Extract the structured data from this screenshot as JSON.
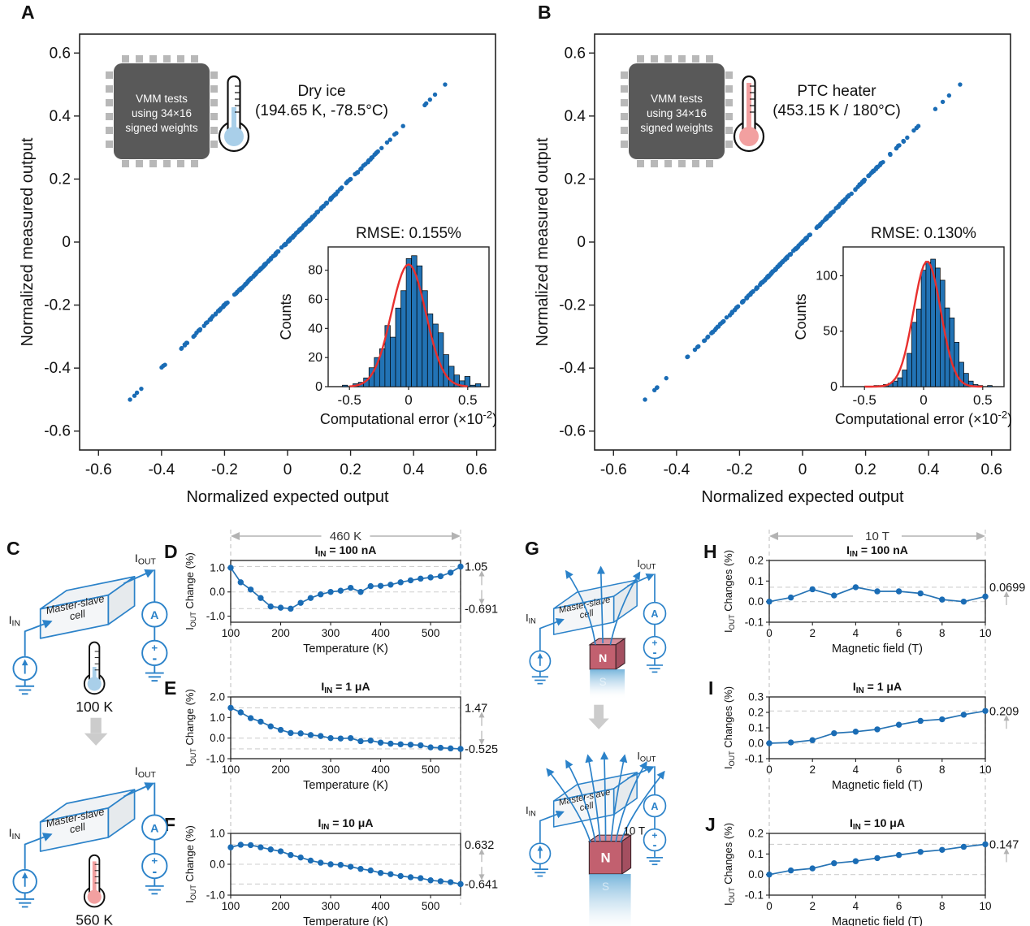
{
  "letters": {
    "a": "A",
    "b": "B",
    "c": "C",
    "d": "D",
    "e": "E",
    "f": "F",
    "g": "G",
    "h": "H",
    "i": "I",
    "j": "J"
  },
  "colors": {
    "point_blue": "#1a6cb5",
    "line_blue": "#2673b4",
    "hist_bar": "#2273b5",
    "gauss_red": "#e8302e",
    "circuit": "#2b82c9",
    "chip_body": "#595959",
    "chip_pin": "#b8b8b8",
    "thermo_cold": "#a9cfe9",
    "thermo_hot": "#f2a0a0",
    "magnet_front": "#c2606f",
    "magnet_top": "#d78f9c",
    "magnet_side": "#a44f60",
    "dash_gray": "#c9c9c9",
    "annot_gray": "#b3b3b3",
    "axis": "#1a1a1a"
  },
  "headers": {
    "def": {
      "label": "460 K"
    },
    "hij": {
      "label": "10 T"
    }
  },
  "chart_data": [
    {
      "id": "A",
      "type": "scatter",
      "xlabel": "Normalized expected output",
      "ylabel": "Normalized measured output",
      "xlim": [
        -0.66,
        0.66
      ],
      "ylim": [
        -0.66,
        0.66
      ],
      "ticks": {
        "vals": [
          -0.6,
          -0.4,
          -0.2,
          0,
          0.2,
          0.4,
          0.6
        ],
        "labels": [
          "-0.6",
          "-0.4",
          "-0.2",
          "0",
          "0.2",
          "0.4",
          "0.6"
        ]
      },
      "relation": "measured output = expected output (points lie on identity line y=x, -0.5 to 0.5)",
      "scatter_spec": {
        "n": 235,
        "seed": 987654321,
        "spread": 0.62,
        "clip": 0.5,
        "noise": 0.004,
        "extremes": [
          [
            -0.5,
            -0.5
          ],
          [
            -0.478,
            -0.478
          ],
          [
            0.5,
            0.5
          ],
          [
            0.468,
            0.468
          ],
          [
            0.452,
            0.452
          ],
          [
            0.44,
            0.44
          ]
        ]
      },
      "chip_label": [
        "VMM tests",
        "using 34×16",
        "signed weights"
      ],
      "thermometer": "cold",
      "condition": [
        "Dry ice",
        "(194.65 K, -78.5°C)"
      ],
      "inset": {
        "type": "histogram",
        "title": "RMSE: 0.155%",
        "ylabel": "Counts",
        "xlabel_parts": {
          "pre": "Computational error (×10",
          "sup": "-2",
          "post": ")"
        },
        "xlim": [
          -0.68,
          0.68
        ],
        "xticks": {
          "vals": [
            -0.5,
            0,
            0.5
          ],
          "labels": [
            "-0.5",
            "0",
            "0.5"
          ]
        },
        "yticks": [
          0,
          20,
          40,
          60,
          80
        ],
        "ymax": 96,
        "bin_start": -0.56,
        "bin_width": 0.045,
        "counts": [
          1,
          0,
          2,
          3,
          6,
          13,
          20,
          26,
          42,
          34,
          54,
          66,
          88,
          90,
          83,
          66,
          50,
          43,
          37,
          22,
          14,
          8,
          4,
          7,
          1,
          2
        ],
        "gauss": {
          "mu": 0.0,
          "sigma": 0.145,
          "peak": 84
        }
      }
    },
    {
      "id": "B",
      "type": "scatter",
      "xlabel": "Normalized expected output",
      "ylabel": "Normalized measured output",
      "xlim": [
        -0.66,
        0.66
      ],
      "ylim": [
        -0.66,
        0.66
      ],
      "ticks": {
        "vals": [
          -0.6,
          -0.4,
          -0.2,
          0,
          0.2,
          0.4,
          0.6
        ],
        "labels": [
          "-0.6",
          "-0.4",
          "-0.2",
          "0",
          "0.2",
          "0.4",
          "0.6"
        ]
      },
      "relation": "measured output = expected output (points lie on identity line y=x, -0.5 to 0.5)",
      "scatter_spec": {
        "n": 235,
        "seed": 123456789,
        "spread": 0.62,
        "clip": 0.5,
        "noise": 0.004,
        "extremes": [
          [
            -0.5,
            -0.5
          ],
          [
            -0.47,
            -0.47
          ],
          [
            0.5,
            0.5
          ],
          [
            0.465,
            0.465
          ],
          [
            0.445,
            0.445
          ]
        ]
      },
      "chip_label": [
        "VMM tests",
        "using 34×16",
        "signed weights"
      ],
      "thermometer": "hot",
      "condition": [
        "PTC heater",
        "(453.15 K / 180°C)"
      ],
      "inset": {
        "type": "histogram",
        "title": "RMSE: 0.130%",
        "ylabel": "Counts",
        "xlabel_parts": {
          "pre": "Computational error (×10",
          "sup": "-2",
          "post": ")"
        },
        "xlim": [
          -0.68,
          0.68
        ],
        "xticks": {
          "vals": [
            -0.5,
            0,
            0.5
          ],
          "labels": [
            "-0.5",
            "0",
            "0.5"
          ]
        },
        "yticks": [
          0,
          50,
          100
        ],
        "ymax": 126,
        "bin_start": -0.42,
        "bin_width": 0.04,
        "counts": [
          1,
          1,
          2,
          3,
          5,
          8,
          15,
          30,
          58,
          70,
          105,
          112,
          115,
          107,
          96,
          71,
          62,
          40,
          22,
          12,
          5,
          2,
          1,
          0,
          1
        ],
        "gauss": {
          "mu": 0.03,
          "sigma": 0.115,
          "peak": 113
        }
      }
    },
    {
      "id": "D",
      "type": "line",
      "title_parts": {
        "base": "I",
        "sub": "IN",
        "rest": " = 100 nA"
      },
      "ylabel_parts": {
        "base": "I",
        "sub": "OUT",
        "rest": " Change (%)"
      },
      "xlabel": "Temperature (K)",
      "x_start": 100,
      "x_step": 20,
      "values": [
        1.0,
        0.4,
        0.1,
        -0.25,
        -0.6,
        -0.65,
        -0.691,
        -0.45,
        -0.25,
        -0.1,
        0.0,
        0.05,
        0.17,
        0.0,
        0.24,
        0.25,
        0.3,
        0.4,
        0.48,
        0.55,
        0.6,
        0.65,
        0.8,
        1.05
      ],
      "xlim": [
        100,
        560
      ],
      "ylim": [
        -1.25,
        1.3
      ],
      "xticks": {
        "vals": [
          100,
          200,
          300,
          400,
          500
        ],
        "labels": [
          "100",
          "200",
          "300",
          "400",
          "500"
        ]
      },
      "yticks": {
        "vals": [
          1.0,
          0.0,
          -1.0
        ],
        "labels": [
          "1.0",
          "0.0",
          "-1.0"
        ]
      },
      "dashed": [
        1.05,
        0,
        -0.691
      ],
      "annotations": [
        {
          "label": "1.05",
          "value": 1.05
        },
        {
          "label": "-0.691",
          "value": -0.691
        }
      ]
    },
    {
      "id": "E",
      "type": "line",
      "title_parts": {
        "base": "I",
        "sub": "IN",
        "rest": " = 1 μA"
      },
      "ylabel_parts": {
        "base": "I",
        "sub": "OUT",
        "rest": " Change (%)"
      },
      "xlabel": "Temperature (K)",
      "x_start": 100,
      "x_step": 20,
      "values": [
        1.47,
        1.25,
        0.97,
        0.8,
        0.57,
        0.4,
        0.25,
        0.23,
        0.15,
        0.1,
        0.0,
        -0.02,
        0.0,
        -0.15,
        -0.12,
        -0.22,
        -0.27,
        -0.3,
        -0.32,
        -0.35,
        -0.45,
        -0.47,
        -0.5,
        -0.525
      ],
      "xlim": [
        100,
        560
      ],
      "ylim": [
        -1.0,
        2.0
      ],
      "xticks": {
        "vals": [
          100,
          200,
          300,
          400,
          500
        ],
        "labels": [
          "100",
          "200",
          "300",
          "400",
          "500"
        ]
      },
      "yticks": {
        "vals": [
          2.0,
          1.0,
          0.0,
          -1.0
        ],
        "labels": [
          "2.0",
          "1.0",
          "0.0",
          "-1.0"
        ]
      },
      "dashed": [
        1.47,
        0,
        -0.525
      ],
      "annotations": [
        {
          "label": "1.47",
          "value": 1.47
        },
        {
          "label": "-0.525",
          "value": -0.525
        }
      ]
    },
    {
      "id": "F",
      "type": "line",
      "title_parts": {
        "base": "I",
        "sub": "IN",
        "rest": " = 10 μA"
      },
      "ylabel_parts": {
        "base": "I",
        "sub": "OUT",
        "rest": " Change (%)"
      },
      "xlabel": "Temperature (K)",
      "x_start": 100,
      "x_step": 20,
      "values": [
        0.55,
        0.632,
        0.62,
        0.55,
        0.48,
        0.42,
        0.3,
        0.22,
        0.12,
        0.05,
        0.0,
        -0.02,
        -0.08,
        -0.15,
        -0.2,
        -0.28,
        -0.32,
        -0.38,
        -0.42,
        -0.45,
        -0.52,
        -0.55,
        -0.58,
        -0.641
      ],
      "xlim": [
        100,
        560
      ],
      "ylim": [
        -1.0,
        1.0
      ],
      "xticks": {
        "vals": [
          100,
          200,
          300,
          400,
          500
        ],
        "labels": [
          "100",
          "200",
          "300",
          "400",
          "500"
        ]
      },
      "yticks": {
        "vals": [
          1.0,
          0.0,
          -1.0
        ],
        "labels": [
          "1.0",
          "0.0",
          "-1.0"
        ]
      },
      "dashed": [
        0.632,
        0,
        -0.641
      ],
      "annotations": [
        {
          "label": "0.632",
          "value": 0.632
        },
        {
          "label": "-0.641",
          "value": -0.641
        }
      ]
    },
    {
      "id": "H",
      "type": "line",
      "title_parts": {
        "base": "I",
        "sub": "IN",
        "rest": " = 100 nA"
      },
      "ylabel_parts": {
        "base": "I",
        "sub": "OUT",
        "rest": " Changes (%)"
      },
      "xlabel": "Magnetic field (T)",
      "x": [
        0,
        1,
        2,
        3,
        4,
        5,
        6,
        7,
        8,
        9,
        10
      ],
      "values": [
        0.0,
        0.02,
        0.06,
        0.03,
        0.07,
        0.05,
        0.05,
        0.04,
        0.01,
        0.0,
        0.025
      ],
      "xlim": [
        0,
        10
      ],
      "ylim": [
        -0.1,
        0.2
      ],
      "xticks": {
        "vals": [
          0,
          2,
          4,
          6,
          8,
          10
        ],
        "labels": [
          "0",
          "2",
          "4",
          "6",
          "8",
          "10"
        ]
      },
      "yticks": {
        "vals": [
          0.2,
          0.1,
          0.0,
          -0.1
        ],
        "labels": [
          "0.2",
          "0.1",
          "0.0",
          "-0.1"
        ]
      },
      "dashed": [
        0.0699,
        0
      ],
      "annotations": [
        {
          "label": "0.0699",
          "value": 0.0699
        }
      ]
    },
    {
      "id": "I",
      "type": "line",
      "title_parts": {
        "base": "I",
        "sub": "IN",
        "rest": " = 1 μA"
      },
      "ylabel_parts": {
        "base": "I",
        "sub": "OUT",
        "rest": " Changes (%)"
      },
      "xlabel": "Magnetic field (T)",
      "x": [
        0,
        1,
        2,
        3,
        4,
        5,
        6,
        7,
        8,
        9,
        10
      ],
      "values": [
        0.0,
        0.005,
        0.02,
        0.065,
        0.075,
        0.09,
        0.12,
        0.145,
        0.155,
        0.185,
        0.209
      ],
      "xlim": [
        0,
        10
      ],
      "ylim": [
        -0.1,
        0.3
      ],
      "xticks": {
        "vals": [
          0,
          2,
          4,
          6,
          8,
          10
        ],
        "labels": [
          "0",
          "2",
          "4",
          "6",
          "8",
          "10"
        ]
      },
      "yticks": {
        "vals": [
          0.3,
          0.2,
          0.1,
          0.0,
          -0.1
        ],
        "labels": [
          "0.3",
          "0.2",
          "0.1",
          "0.0",
          "-0.1"
        ]
      },
      "dashed": [
        0.209,
        0
      ],
      "annotations": [
        {
          "label": "0.209",
          "value": 0.209
        }
      ]
    },
    {
      "id": "J",
      "type": "line",
      "title_parts": {
        "base": "I",
        "sub": "IN",
        "rest": " = 10 μA"
      },
      "ylabel_parts": {
        "base": "I",
        "sub": "OUT",
        "rest": " Changes (%)"
      },
      "xlabel": "Magnetic field (T)",
      "x": [
        0,
        1,
        2,
        3,
        4,
        5,
        6,
        7,
        8,
        9,
        10
      ],
      "values": [
        0.0,
        0.02,
        0.03,
        0.055,
        0.065,
        0.08,
        0.095,
        0.11,
        0.12,
        0.135,
        0.147
      ],
      "xlim": [
        0,
        10
      ],
      "ylim": [
        -0.1,
        0.2
      ],
      "xticks": {
        "vals": [
          0,
          2,
          4,
          6,
          8,
          10
        ],
        "labels": [
          "0",
          "2",
          "4",
          "6",
          "8",
          "10"
        ]
      },
      "yticks": {
        "vals": [
          0.2,
          0.1,
          0.0,
          -0.1
        ],
        "labels": [
          "0.2",
          "0.1",
          "0.0",
          "-0.1"
        ]
      },
      "dashed": [
        0.147,
        0
      ],
      "annotations": [
        {
          "label": "0.147",
          "value": 0.147
        }
      ]
    }
  ],
  "diagrams": {
    "C": {
      "cell_label": [
        "Master-slave",
        "cell"
      ],
      "iin": {
        "base": "I",
        "sub": "IN"
      },
      "iout": {
        "base": "I",
        "sub": "OUT"
      },
      "ammeter": "A",
      "plus": "+",
      "minus": "-",
      "stages": [
        {
          "temp_label": "100 K",
          "thermo": "cold"
        },
        {
          "temp_label": "560 K",
          "thermo": "hot"
        }
      ]
    },
    "G": {
      "cell_label": [
        "Master-slave",
        "cell"
      ],
      "iin": {
        "base": "I",
        "sub": "IN"
      },
      "iout": {
        "base": "I",
        "sub": "OUT"
      },
      "ammeter": "A",
      "plus": "+",
      "minus": "-",
      "magnet_pole": "N",
      "magnet_pole_hidden": "S",
      "stages": [
        {
          "field_lines": 3
        },
        {
          "field_lines": 7,
          "field_label": "10 T"
        }
      ]
    }
  }
}
